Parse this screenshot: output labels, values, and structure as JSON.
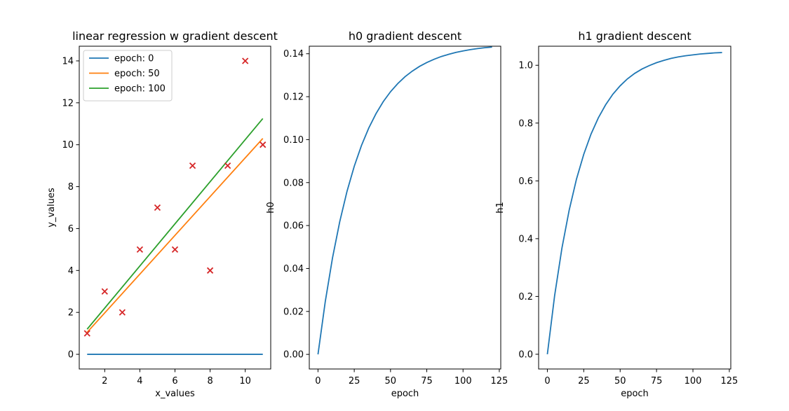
{
  "chart_data": [
    {
      "type": "line",
      "title": "linear regression w gradient descent",
      "xlabel": "x_values",
      "ylabel": "y_values",
      "xlim": [
        0.55,
        11.45
      ],
      "ylim": [
        -0.7,
        14.7
      ],
      "xticks": [
        2,
        4,
        6,
        8,
        10
      ],
      "yticks": [
        0,
        2,
        4,
        6,
        8,
        10,
        12,
        14
      ],
      "grid": false,
      "legend_location": "top-left",
      "scatter": {
        "marker": "x",
        "color": "#d62728",
        "points": [
          [
            1,
            1
          ],
          [
            2,
            3
          ],
          [
            3,
            2
          ],
          [
            4,
            5
          ],
          [
            5,
            7
          ],
          [
            6,
            5
          ],
          [
            7,
            9
          ],
          [
            8,
            4
          ],
          [
            9,
            9
          ],
          [
            10,
            14
          ],
          [
            11,
            10
          ]
        ]
      },
      "series": [
        {
          "name": "epoch: 0",
          "color": "#1f77b4",
          "x": [
            1,
            11
          ],
          "y": [
            0,
            0
          ]
        },
        {
          "name": "epoch: 50",
          "color": "#ff7f0e",
          "x": [
            1,
            11
          ],
          "y": [
            1.05,
            10.3
          ]
        },
        {
          "name": "epoch: 100",
          "color": "#2ca02c",
          "x": [
            1,
            11
          ],
          "y": [
            1.2,
            11.25
          ]
        }
      ]
    },
    {
      "type": "line",
      "title": "h0 gradient descent",
      "xlabel": "epoch",
      "ylabel": "h0",
      "xlim": [
        -6,
        126
      ],
      "ylim": [
        -0.0068,
        0.1435
      ],
      "xticks": [
        0,
        25,
        50,
        75,
        100,
        125
      ],
      "yticks": [
        0.0,
        0.02,
        0.04,
        0.06,
        0.08,
        0.1,
        0.12,
        0.14
      ],
      "ytick_labels": [
        "0.00",
        "0.02",
        "0.04",
        "0.06",
        "0.08",
        "0.10",
        "0.12",
        "0.14"
      ],
      "grid": false,
      "series": [
        {
          "color": "#1f77b4",
          "x": [
            0,
            5,
            10,
            15,
            20,
            25,
            30,
            35,
            40,
            45,
            50,
            55,
            60,
            65,
            70,
            75,
            80,
            85,
            90,
            95,
            100,
            105,
            110,
            115,
            120
          ],
          "y": [
            0.0,
            0.0245,
            0.0449,
            0.0618,
            0.0759,
            0.0876,
            0.0973,
            0.1054,
            0.1121,
            0.1177,
            0.1223,
            0.1261,
            0.1293,
            0.1319,
            0.1341,
            0.1359,
            0.1374,
            0.1387,
            0.1397,
            0.1406,
            0.1413,
            0.1419,
            0.1424,
            0.1428,
            0.1431
          ]
        }
      ]
    },
    {
      "type": "line",
      "title": "h1 gradient descent",
      "xlabel": "epoch",
      "ylabel": "h1",
      "xlim": [
        -6,
        126
      ],
      "ylim": [
        -0.051,
        1.066
      ],
      "xticks": [
        0,
        25,
        50,
        75,
        100,
        125
      ],
      "yticks": [
        0.0,
        0.2,
        0.4,
        0.6,
        0.8,
        1.0
      ],
      "ytick_labels": [
        "0.0",
        "0.2",
        "0.4",
        "0.6",
        "0.8",
        "1.0"
      ],
      "grid": false,
      "series": [
        {
          "color": "#1f77b4",
          "x": [
            0,
            5,
            10,
            15,
            20,
            25,
            30,
            35,
            40,
            45,
            50,
            55,
            60,
            65,
            70,
            75,
            80,
            85,
            90,
            95,
            100,
            105,
            110,
            115,
            120
          ],
          "y": [
            0.0,
            0.203,
            0.367,
            0.499,
            0.606,
            0.692,
            0.762,
            0.818,
            0.863,
            0.9,
            0.929,
            0.953,
            0.972,
            0.987,
            0.999,
            1.009,
            1.017,
            1.024,
            1.029,
            1.033,
            1.036,
            1.039,
            1.041,
            1.043,
            1.044
          ]
        }
      ]
    }
  ]
}
